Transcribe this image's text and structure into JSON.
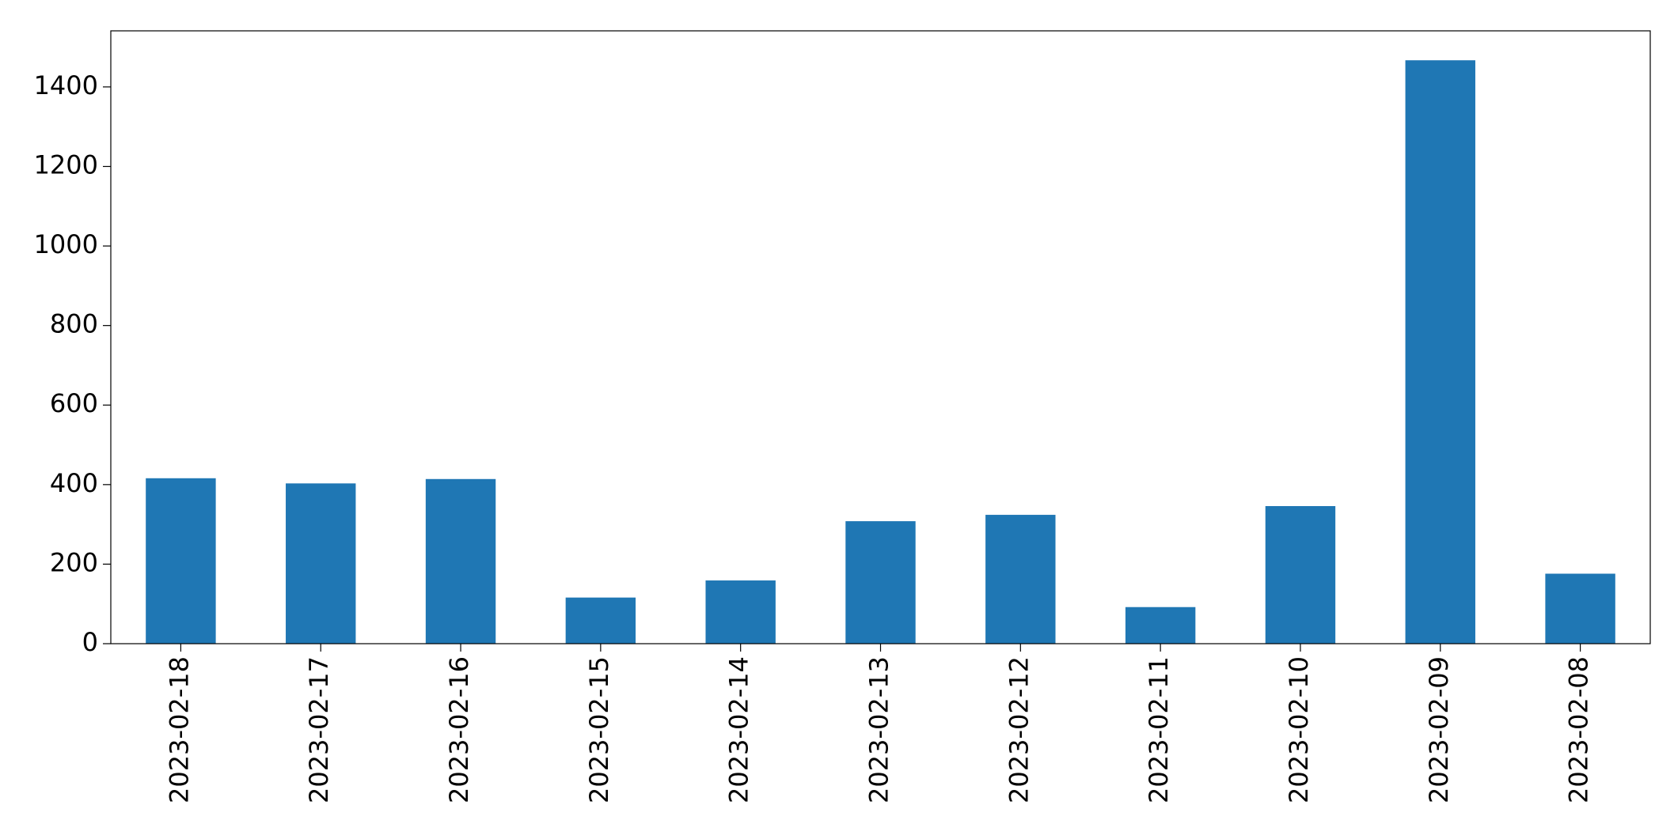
{
  "chart_data": {
    "type": "bar",
    "categories": [
      "2023-02-18",
      "2023-02-17",
      "2023-02-16",
      "2023-02-15",
      "2023-02-14",
      "2023-02-13",
      "2023-02-12",
      "2023-02-11",
      "2023-02-10",
      "2023-02-09",
      "2023-02-08"
    ],
    "values": [
      416,
      403,
      414,
      116,
      159,
      308,
      324,
      92,
      346,
      1467,
      176
    ],
    "color": "#1f77b4",
    "ylim": [
      0,
      1541
    ],
    "yticks": [
      0,
      200,
      400,
      600,
      800,
      1000,
      1200,
      1400
    ],
    "grid": false
  }
}
